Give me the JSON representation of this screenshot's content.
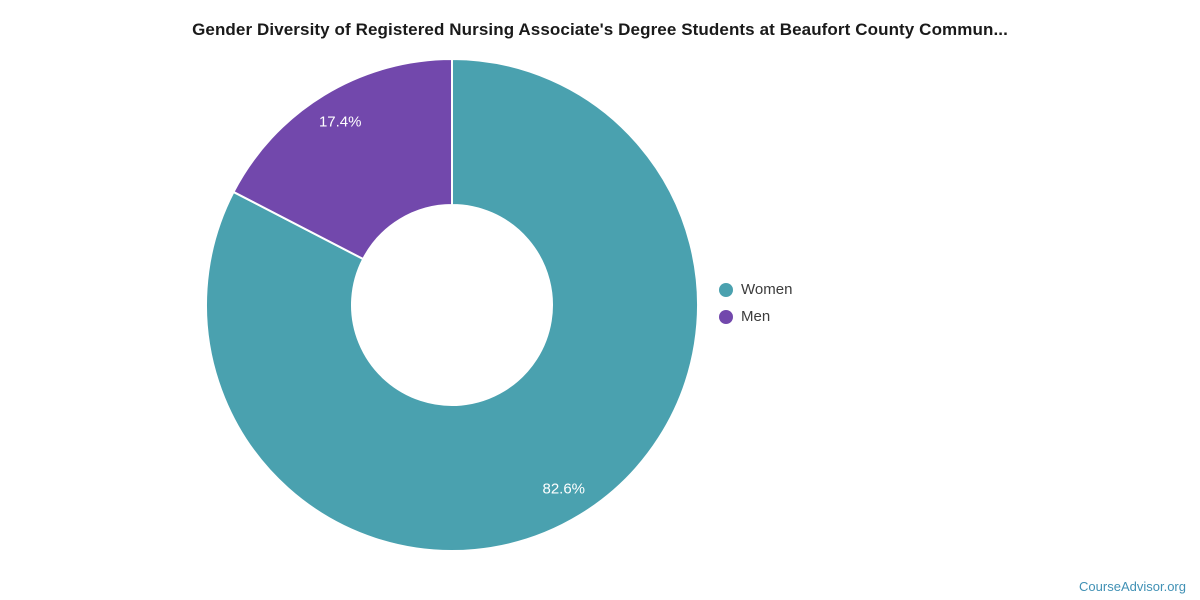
{
  "page": {
    "watermark": "CourseAdvisor.org"
  },
  "chart_data": {
    "type": "pie",
    "donut": true,
    "title": "Gender Diversity of Registered Nursing Associate's Degree Students at Beaufort County Commun...",
    "slices": [
      {
        "label": "Women",
        "value": 82.6,
        "display": "82.6%",
        "color": "#4aa1af"
      },
      {
        "label": "Men",
        "value": 17.4,
        "display": "17.4%",
        "color": "#7248ac"
      }
    ],
    "start_angle_deg": 0,
    "direction": "clockwise",
    "legend_position": "right",
    "legend_entries": [
      "Women",
      "Men"
    ],
    "slice_label_color": "#ffffff",
    "slice_border_color": "#ffffff"
  }
}
